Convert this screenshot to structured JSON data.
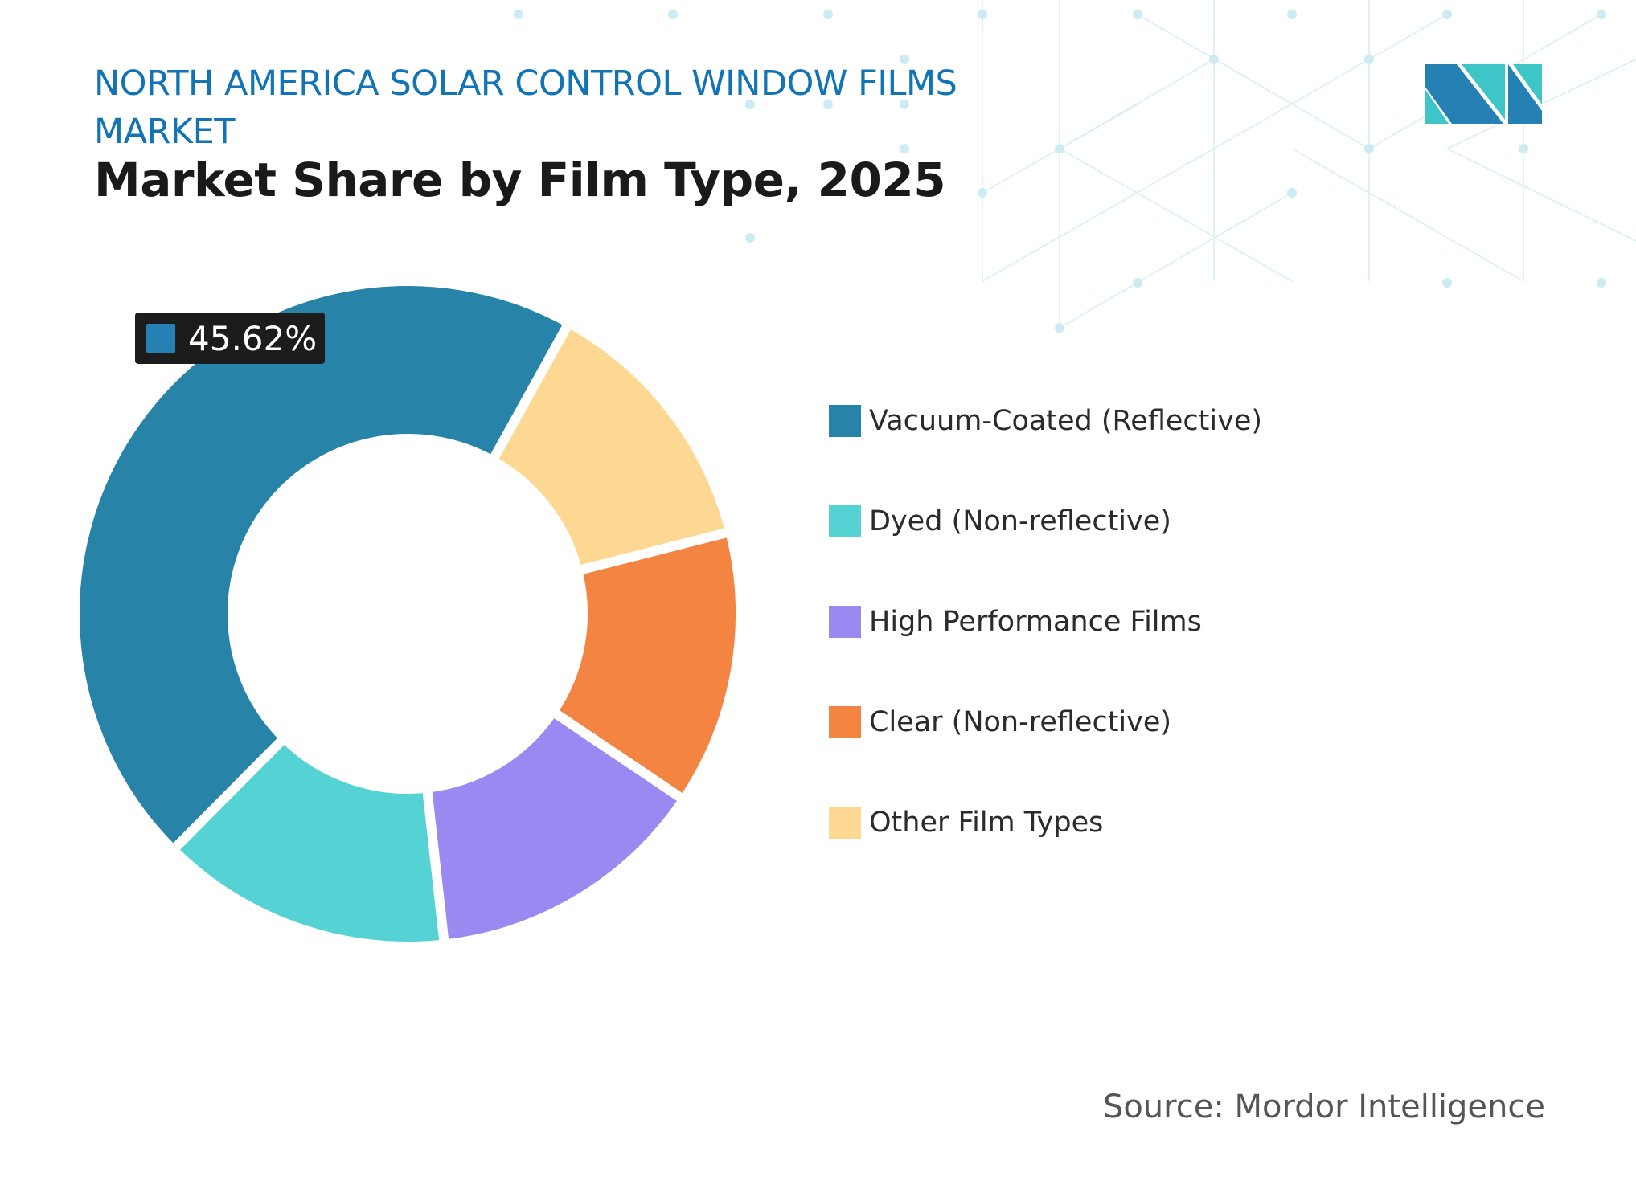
{
  "header": {
    "title": "NORTH AMERICA SOLAR CONTROL WINDOW FILMS MARKET",
    "subtitle": "Market Share by Film Type, 2025"
  },
  "logo": {
    "text": "MI",
    "colors": [
      "#2580b3",
      "#3ec5c7"
    ]
  },
  "tooltip": {
    "label": "45.62%",
    "color": "#2580b3"
  },
  "source": "Source: Mordor Intelligence",
  "chart_data": {
    "type": "pie",
    "subtype": "donut",
    "title": "Market Share by Film Type, 2025",
    "legend_position": "right",
    "categories": [
      "Vacuum-Coated (Reflective)",
      "Dyed (Non-reflective)",
      "High Performance Films",
      "Clear (Non-reflective)",
      "Other Film Types"
    ],
    "values": [
      45.62,
      14.2,
      13.8,
      13.4,
      12.98
    ],
    "colors": [
      "#2783a8",
      "#55d2d3",
      "#9a89f0",
      "#f38442",
      "#fdd892"
    ],
    "data_labels": [
      "45.62%",
      null,
      null,
      null,
      null
    ]
  }
}
